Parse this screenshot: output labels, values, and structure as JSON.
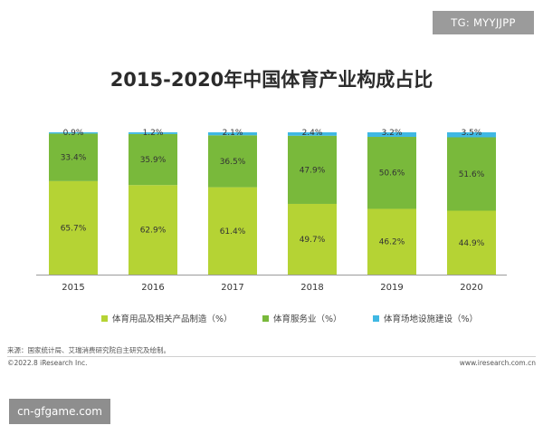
{
  "badge": {
    "text": "TG: MYYJJPP"
  },
  "watermark": {
    "text": "cn-gfgame.com"
  },
  "footer": {
    "source": "来源：国家统计局、艾瑞消费研究院自主研究及绘制。",
    "copyright": "©2022.8 iResearch Inc.",
    "url": "www.iresearch.com.cn"
  },
  "colors": {
    "manufacturing": "#b5d334",
    "services": "#79b93b",
    "venues": "#3fb8e3"
  },
  "chart_data": {
    "type": "bar",
    "stacked": true,
    "normalized": true,
    "title": "2015-2020年中国体育产业构成占比",
    "xlabel": "",
    "ylabel": "",
    "ylim": [
      0,
      100
    ],
    "grid": false,
    "legend_position": "bottom",
    "categories": [
      "2015",
      "2016",
      "2017",
      "2018",
      "2019",
      "2020"
    ],
    "series": [
      {
        "name": "体育用品及相关产品制造（%）",
        "color": "#b5d334",
        "values": [
          65.7,
          62.9,
          61.4,
          49.7,
          46.2,
          44.9
        ],
        "labels": [
          "65.7%",
          "62.9%",
          "61.4%",
          "49.7%",
          "46.2%",
          "44.9%"
        ]
      },
      {
        "name": "体育服务业（%）",
        "color": "#79b93b",
        "values": [
          33.4,
          35.9,
          36.5,
          47.9,
          50.6,
          51.6
        ],
        "labels": [
          "33.4%",
          "35.9%",
          "36.5%",
          "47.9%",
          "50.6%",
          "51.6%"
        ]
      },
      {
        "name": "体育场地设施建设（%）",
        "color": "#3fb8e3",
        "values": [
          0.9,
          1.2,
          2.1,
          2.4,
          3.2,
          3.5
        ],
        "labels": [
          "0.9%",
          "1.2%",
          "2.1%",
          "2.4%",
          "3.2%",
          "3.5%"
        ]
      }
    ]
  }
}
